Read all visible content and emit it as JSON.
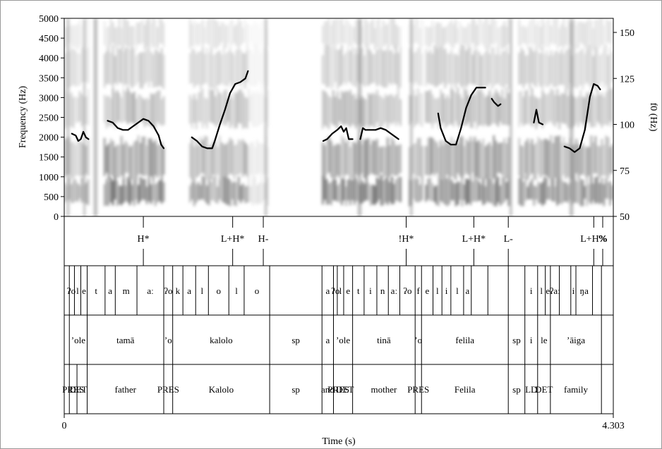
{
  "axes": {
    "left_label": "Frequency (Hz)",
    "right_label": "f0 (Hz)",
    "bottom_label": "Time (s)",
    "time_start": "0",
    "time_end": "4.303",
    "left_ticks": [
      "0",
      "500",
      "1000",
      "1500",
      "2000",
      "2500",
      "3000",
      "3500",
      "4000",
      "4500",
      "5000"
    ],
    "right_ticks": [
      "50",
      "75",
      "100",
      "125",
      "150"
    ]
  },
  "tone_tier": [
    {
      "label": "H*",
      "t": 0.62
    },
    {
      "label": "L+H*",
      "t": 1.32
    },
    {
      "label": "H-",
      "t": 1.56
    },
    {
      "label": "!H*",
      "t": 2.68
    },
    {
      "label": "L+H*",
      "t": 3.21
    },
    {
      "label": "L-",
      "t": 3.48
    },
    {
      "label": "L+H%",
      "t": 4.15
    },
    {
      "label": "%",
      "t": 4.22
    }
  ],
  "tier1_segments": {
    "boundaries": [
      0.04,
      0.08,
      0.13,
      0.18,
      0.32,
      0.4,
      0.57,
      0.78,
      0.85,
      0.93,
      1.03,
      1.13,
      1.29,
      1.41,
      1.61,
      2.02,
      2.11,
      2.14,
      2.19,
      2.26,
      2.35,
      2.45,
      2.54,
      2.63,
      2.75,
      2.8,
      2.89,
      2.96,
      3.03,
      3.13,
      3.19,
      3.32,
      3.48,
      3.61,
      3.71,
      3.77,
      3.81,
      3.88,
      3.97,
      4.01,
      4.14,
      4.21
    ],
    "labels": [
      {
        "text": "ʔo",
        "t": 0.055
      },
      {
        "text": "l",
        "t": 0.105
      },
      {
        "text": "e",
        "t": 0.155
      },
      {
        "text": "t",
        "t": 0.25
      },
      {
        "text": "a",
        "t": 0.36
      },
      {
        "text": "m",
        "t": 0.485
      },
      {
        "text": "aː",
        "t": 0.675
      },
      {
        "text": "ʔo",
        "t": 0.815
      },
      {
        "text": "k",
        "t": 0.89
      },
      {
        "text": "a",
        "t": 0.98
      },
      {
        "text": "l",
        "t": 1.08
      },
      {
        "text": "o",
        "t": 1.21
      },
      {
        "text": "l",
        "t": 1.35
      },
      {
        "text": "o",
        "t": 1.51
      },
      {
        "text": "a",
        "t": 2.065
      },
      {
        "text": "ʔo",
        "t": 2.125
      },
      {
        "text": "l",
        "t": 2.165
      },
      {
        "text": "e",
        "t": 2.225
      },
      {
        "text": "t",
        "t": 2.305
      },
      {
        "text": "i",
        "t": 2.4
      },
      {
        "text": "n",
        "t": 2.495
      },
      {
        "text": "aː",
        "t": 2.585
      },
      {
        "text": "ʔo",
        "t": 2.69
      },
      {
        "text": "f",
        "t": 2.775
      },
      {
        "text": "e",
        "t": 2.845
      },
      {
        "text": "l",
        "t": 2.925
      },
      {
        "text": "i",
        "t": 2.995
      },
      {
        "text": "l",
        "t": 3.08
      },
      {
        "text": "a",
        "t": 3.16
      },
      {
        "text": "i",
        "t": 3.66
      },
      {
        "text": "l",
        "t": 3.74
      },
      {
        "text": "e",
        "t": 3.79
      },
      {
        "text": "ʔaː",
        "t": 3.845
      },
      {
        "text": "i",
        "t": 3.99
      },
      {
        "text": "ŋa",
        "t": 4.075
      }
    ]
  },
  "tier2_words": {
    "boundaries": [
      0.04,
      0.18,
      0.78,
      0.85,
      1.61,
      2.02,
      2.11,
      2.26,
      2.75,
      2.8,
      3.48,
      3.61,
      3.71,
      3.81,
      4.21
    ],
    "labels": [
      {
        "text": "ʼole",
        "t": 0.11
      },
      {
        "text": "tamā",
        "t": 0.48
      },
      {
        "text": "ʼo",
        "t": 0.815
      },
      {
        "text": "kalolo",
        "t": 1.23
      },
      {
        "text": "sp",
        "t": 1.815
      },
      {
        "text": "a",
        "t": 2.065
      },
      {
        "text": "ʼole",
        "t": 2.185
      },
      {
        "text": "tinā",
        "t": 2.505
      },
      {
        "text": "ʼo",
        "t": 2.775
      },
      {
        "text": "felila",
        "t": 3.14
      },
      {
        "text": "sp",
        "t": 3.545
      },
      {
        "text": "i",
        "t": 3.66
      },
      {
        "text": "le",
        "t": 3.76
      },
      {
        "text": "ʼāiga",
        "t": 4.01
      }
    ]
  },
  "tier3_gloss": {
    "boundaries": [
      0.04,
      0.1,
      0.18,
      0.78,
      0.85,
      1.61,
      2.02,
      2.11,
      2.26,
      2.75,
      2.8,
      3.48,
      3.61,
      3.71,
      3.81,
      4.21
    ],
    "labels": [
      {
        "text": "PRES",
        "t": 0.07
      },
      {
        "text": "DET",
        "t": 0.11
      },
      {
        "text": "father",
        "t": 0.48
      },
      {
        "text": "PRES",
        "t": 0.815
      },
      {
        "text": "Kalolo",
        "t": 1.23
      },
      {
        "text": "sp",
        "t": 1.815
      },
      {
        "text": "and",
        "t": 2.065
      },
      {
        "text": "PRES",
        "t": 2.15
      },
      {
        "text": "DET",
        "t": 2.2
      },
      {
        "text": "mother",
        "t": 2.505
      },
      {
        "text": "PRES",
        "t": 2.775
      },
      {
        "text": "Felila",
        "t": 3.14
      },
      {
        "text": "sp",
        "t": 3.545
      },
      {
        "text": "LD",
        "t": 3.66
      },
      {
        "text": "DET",
        "t": 3.76
      },
      {
        "text": "family",
        "t": 4.01
      }
    ]
  },
  "f0_contour_hz": [
    [
      [
        0.06,
        95
      ],
      [
        0.09,
        94
      ],
      [
        0.11,
        91
      ],
      [
        0.13,
        92
      ],
      [
        0.15,
        96
      ],
      [
        0.17,
        93
      ],
      [
        0.19,
        92
      ]
    ],
    [
      [
        0.34,
        102
      ],
      [
        0.38,
        101
      ],
      [
        0.42,
        98
      ],
      [
        0.46,
        97
      ],
      [
        0.5,
        97
      ],
      [
        0.54,
        99
      ],
      [
        0.58,
        101
      ],
      [
        0.62,
        103
      ],
      [
        0.66,
        102
      ],
      [
        0.7,
        99
      ],
      [
        0.74,
        94
      ],
      [
        0.76,
        89
      ],
      [
        0.78,
        87
      ]
    ],
    [
      [
        1.0,
        93
      ],
      [
        1.04,
        91
      ],
      [
        1.08,
        88
      ],
      [
        1.12,
        87
      ],
      [
        1.16,
        87
      ],
      [
        1.18,
        91
      ],
      [
        1.22,
        100
      ],
      [
        1.26,
        108
      ],
      [
        1.3,
        117
      ],
      [
        1.34,
        122
      ],
      [
        1.38,
        123
      ],
      [
        1.42,
        125
      ],
      [
        1.44,
        129
      ]
    ],
    [
      [
        2.03,
        91
      ],
      [
        2.06,
        92
      ],
      [
        2.1,
        95
      ],
      [
        2.14,
        97
      ],
      [
        2.17,
        99
      ],
      [
        2.19,
        96
      ],
      [
        2.21,
        98
      ],
      [
        2.23,
        92
      ],
      [
        2.26,
        92
      ]
    ],
    [
      [
        2.32,
        92
      ],
      [
        2.34,
        98
      ],
      [
        2.36,
        97
      ],
      [
        2.4,
        97
      ],
      [
        2.44,
        97
      ],
      [
        2.48,
        98
      ],
      [
        2.52,
        97
      ],
      [
        2.56,
        95
      ],
      [
        2.6,
        93
      ],
      [
        2.62,
        92
      ]
    ],
    [
      [
        2.93,
        106
      ],
      [
        2.95,
        98
      ],
      [
        2.99,
        91
      ],
      [
        3.03,
        89
      ],
      [
        3.07,
        89
      ],
      [
        3.11,
        98
      ],
      [
        3.15,
        109
      ],
      [
        3.19,
        116
      ],
      [
        3.23,
        120
      ],
      [
        3.27,
        120
      ],
      [
        3.3,
        120
      ]
    ],
    [
      [
        3.35,
        114
      ],
      [
        3.37,
        112
      ],
      [
        3.4,
        110
      ],
      [
        3.42,
        111
      ]
    ],
    [
      [
        3.68,
        101
      ],
      [
        3.7,
        108
      ],
      [
        3.72,
        101
      ],
      [
        3.75,
        100
      ]
    ],
    [
      [
        3.92,
        88
      ],
      [
        3.96,
        87
      ],
      [
        4.0,
        85
      ],
      [
        4.04,
        87
      ],
      [
        4.08,
        97
      ],
      [
        4.12,
        115
      ],
      [
        4.15,
        122
      ],
      [
        4.18,
        121
      ],
      [
        4.2,
        119
      ]
    ]
  ]
}
